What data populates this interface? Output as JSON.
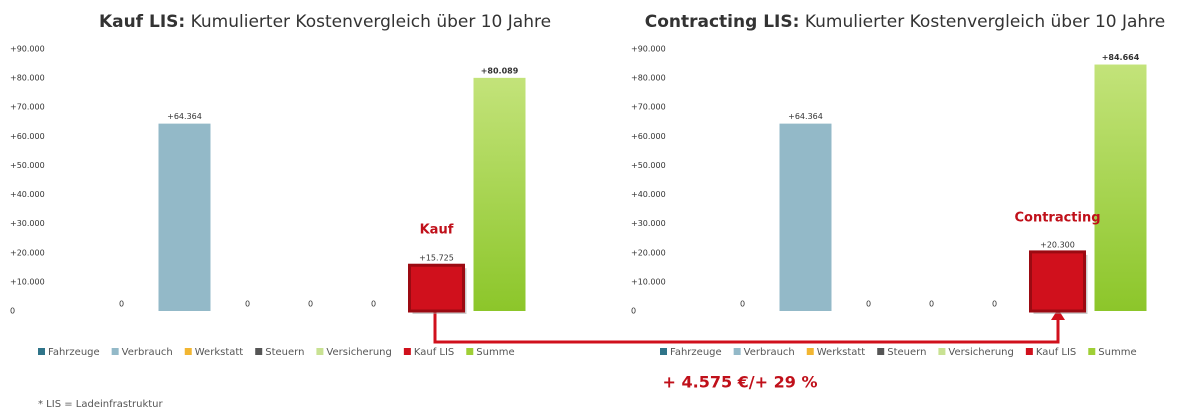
{
  "chart_data": [
    {
      "type": "bar",
      "title_prefix": "Kauf LIS:",
      "title": "Kumulierter Kostenvergleich über 10 Jahre",
      "categories": [
        "Fahrzeuge",
        "Verbrauch",
        "Werkstatt",
        "Steuern",
        "Versicherung",
        "Kauf LIS",
        "Summe"
      ],
      "values": [
        0,
        64364,
        0,
        0,
        0,
        15725,
        80089
      ],
      "value_labels": [
        "0",
        "+64.364",
        "0",
        "0",
        "0",
        "+15.725",
        "+80.089"
      ],
      "colors": [
        "#2f7489",
        "#93b9c8",
        "#f2b632",
        "#555555",
        "#c9e293",
        "#d0101c",
        "#9fcf36"
      ],
      "ylim": [
        0,
        90000
      ],
      "yticks": [
        0,
        {
          "value": 10000,
          "label": "+10.000"
        },
        {
          "value": 20000,
          "label": "+20.000"
        },
        {
          "value": 30000,
          "label": "+30.000"
        },
        {
          "value": 40000,
          "label": "+40.000"
        },
        {
          "value": 50000,
          "label": "+50.000"
        },
        {
          "value": 60000,
          "label": "+60.000"
        },
        {
          "value": 70000,
          "label": "+70.000"
        },
        {
          "value": 80000,
          "label": "+80.000"
        },
        {
          "value": 90000,
          "label": "+90.000"
        }
      ],
      "annotation": "Kauf",
      "legend": "bottom"
    },
    {
      "type": "bar",
      "title_prefix": "Contracting LIS:",
      "title": "Kumulierter Kostenvergleich über 10 Jahre",
      "categories": [
        "Fahrzeuge",
        "Verbrauch",
        "Werkstatt",
        "Steuern",
        "Versicherung",
        "Kauf LIS",
        "Summe"
      ],
      "values": [
        0,
        64364,
        0,
        0,
        0,
        20300,
        84664
      ],
      "value_labels": [
        "0",
        "+64.364",
        "0",
        "0",
        "0",
        "+20.300",
        "+84.664"
      ],
      "colors": [
        "#2f7489",
        "#93b9c8",
        "#f2b632",
        "#555555",
        "#c9e293",
        "#d0101c",
        "#9fcf36"
      ],
      "ylim": [
        0,
        90000
      ],
      "yticks": [
        0,
        {
          "value": 10000,
          "label": "+10.000"
        },
        {
          "value": 20000,
          "label": "+20.000"
        },
        {
          "value": 30000,
          "label": "+30.000"
        },
        {
          "value": 40000,
          "label": "+40.000"
        },
        {
          "value": 50000,
          "label": "+50.000"
        },
        {
          "value": 60000,
          "label": "+60.000"
        },
        {
          "value": 70000,
          "label": "+70.000"
        },
        {
          "value": 80000,
          "label": "+80.000"
        },
        {
          "value": 90000,
          "label": "+90.000"
        }
      ],
      "annotation": "Contracting",
      "legend": "bottom"
    }
  ],
  "comparison": "+ 4.575 €/+ 29 %",
  "footnote": "* LIS = Ladeinfrastruktur"
}
